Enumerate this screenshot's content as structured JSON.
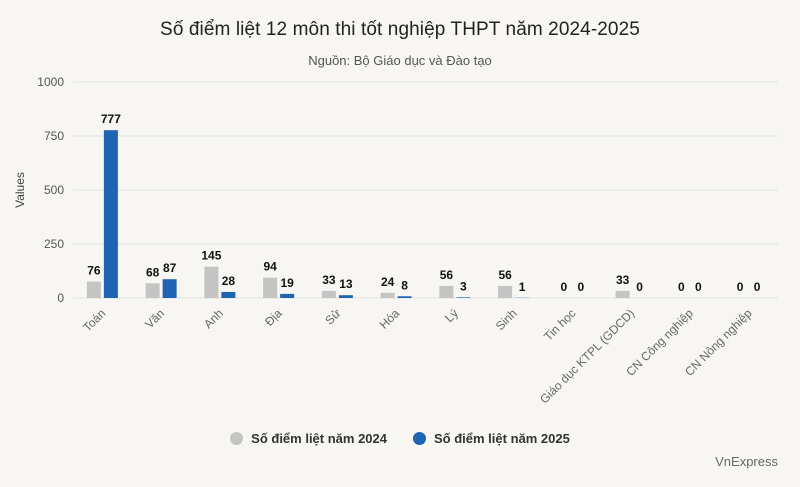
{
  "chart_data": {
    "type": "bar",
    "title": "Số điểm liệt 12 môn thi tốt nghiệp THPT năm 2024-2025",
    "subtitle": "Nguồn: Bộ Giáo dục và Đào tạo",
    "xlabel": "",
    "ylabel": "Values",
    "ylim": [
      0,
      1000
    ],
    "yticks": [
      0,
      250,
      500,
      750,
      1000
    ],
    "grid": true,
    "legend_position": "bottom",
    "categories": [
      "Toán",
      "Văn",
      "Anh",
      "Địa",
      "Sử",
      "Hóa",
      "Lý",
      "Sinh",
      "Tin học",
      "Giáo dục KTPL (GDCD)",
      "CN Công nghiệp",
      "CN Nông nghiệp"
    ],
    "series": [
      {
        "name": "Số điểm liệt năm 2024",
        "color": "#c4c4c4",
        "values": [
          76,
          68,
          145,
          94,
          33,
          24,
          56,
          56,
          0,
          33,
          0,
          0
        ]
      },
      {
        "name": "Số điểm liệt năm 2025",
        "color": "#1f63b5",
        "values": [
          777,
          87,
          28,
          19,
          13,
          8,
          3,
          1,
          0,
          0,
          0,
          0
        ]
      }
    ]
  },
  "credit": "VnExpress"
}
